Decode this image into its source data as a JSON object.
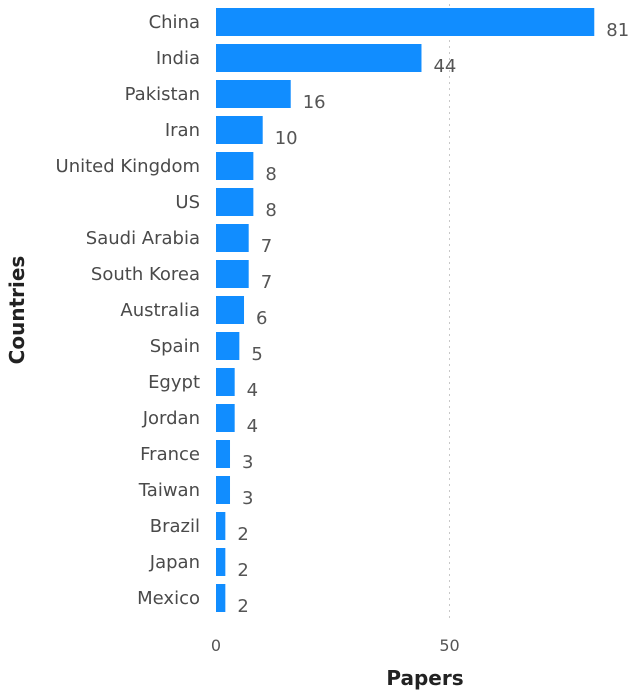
{
  "chart_data": {
    "type": "bar",
    "orientation": "horizontal",
    "categories": [
      "China",
      "India",
      "Pakistan",
      "Iran",
      "United Kingdom",
      "US",
      "Saudi Arabia",
      "South Korea",
      "Australia",
      "Spain",
      "Egypt",
      "Jordan",
      "France",
      "Taiwan",
      "Brazil",
      "Japan",
      "Mexico"
    ],
    "values": [
      81,
      44,
      16,
      10,
      8,
      8,
      7,
      7,
      6,
      5,
      4,
      4,
      3,
      3,
      2,
      2,
      2
    ],
    "xlabel": "Papers",
    "ylabel": "Countries",
    "xlim": [
      0,
      81
    ],
    "xticks": [
      "0",
      "50"
    ],
    "grid": "vertical dotted at 50",
    "bar_color": "#118dff"
  }
}
